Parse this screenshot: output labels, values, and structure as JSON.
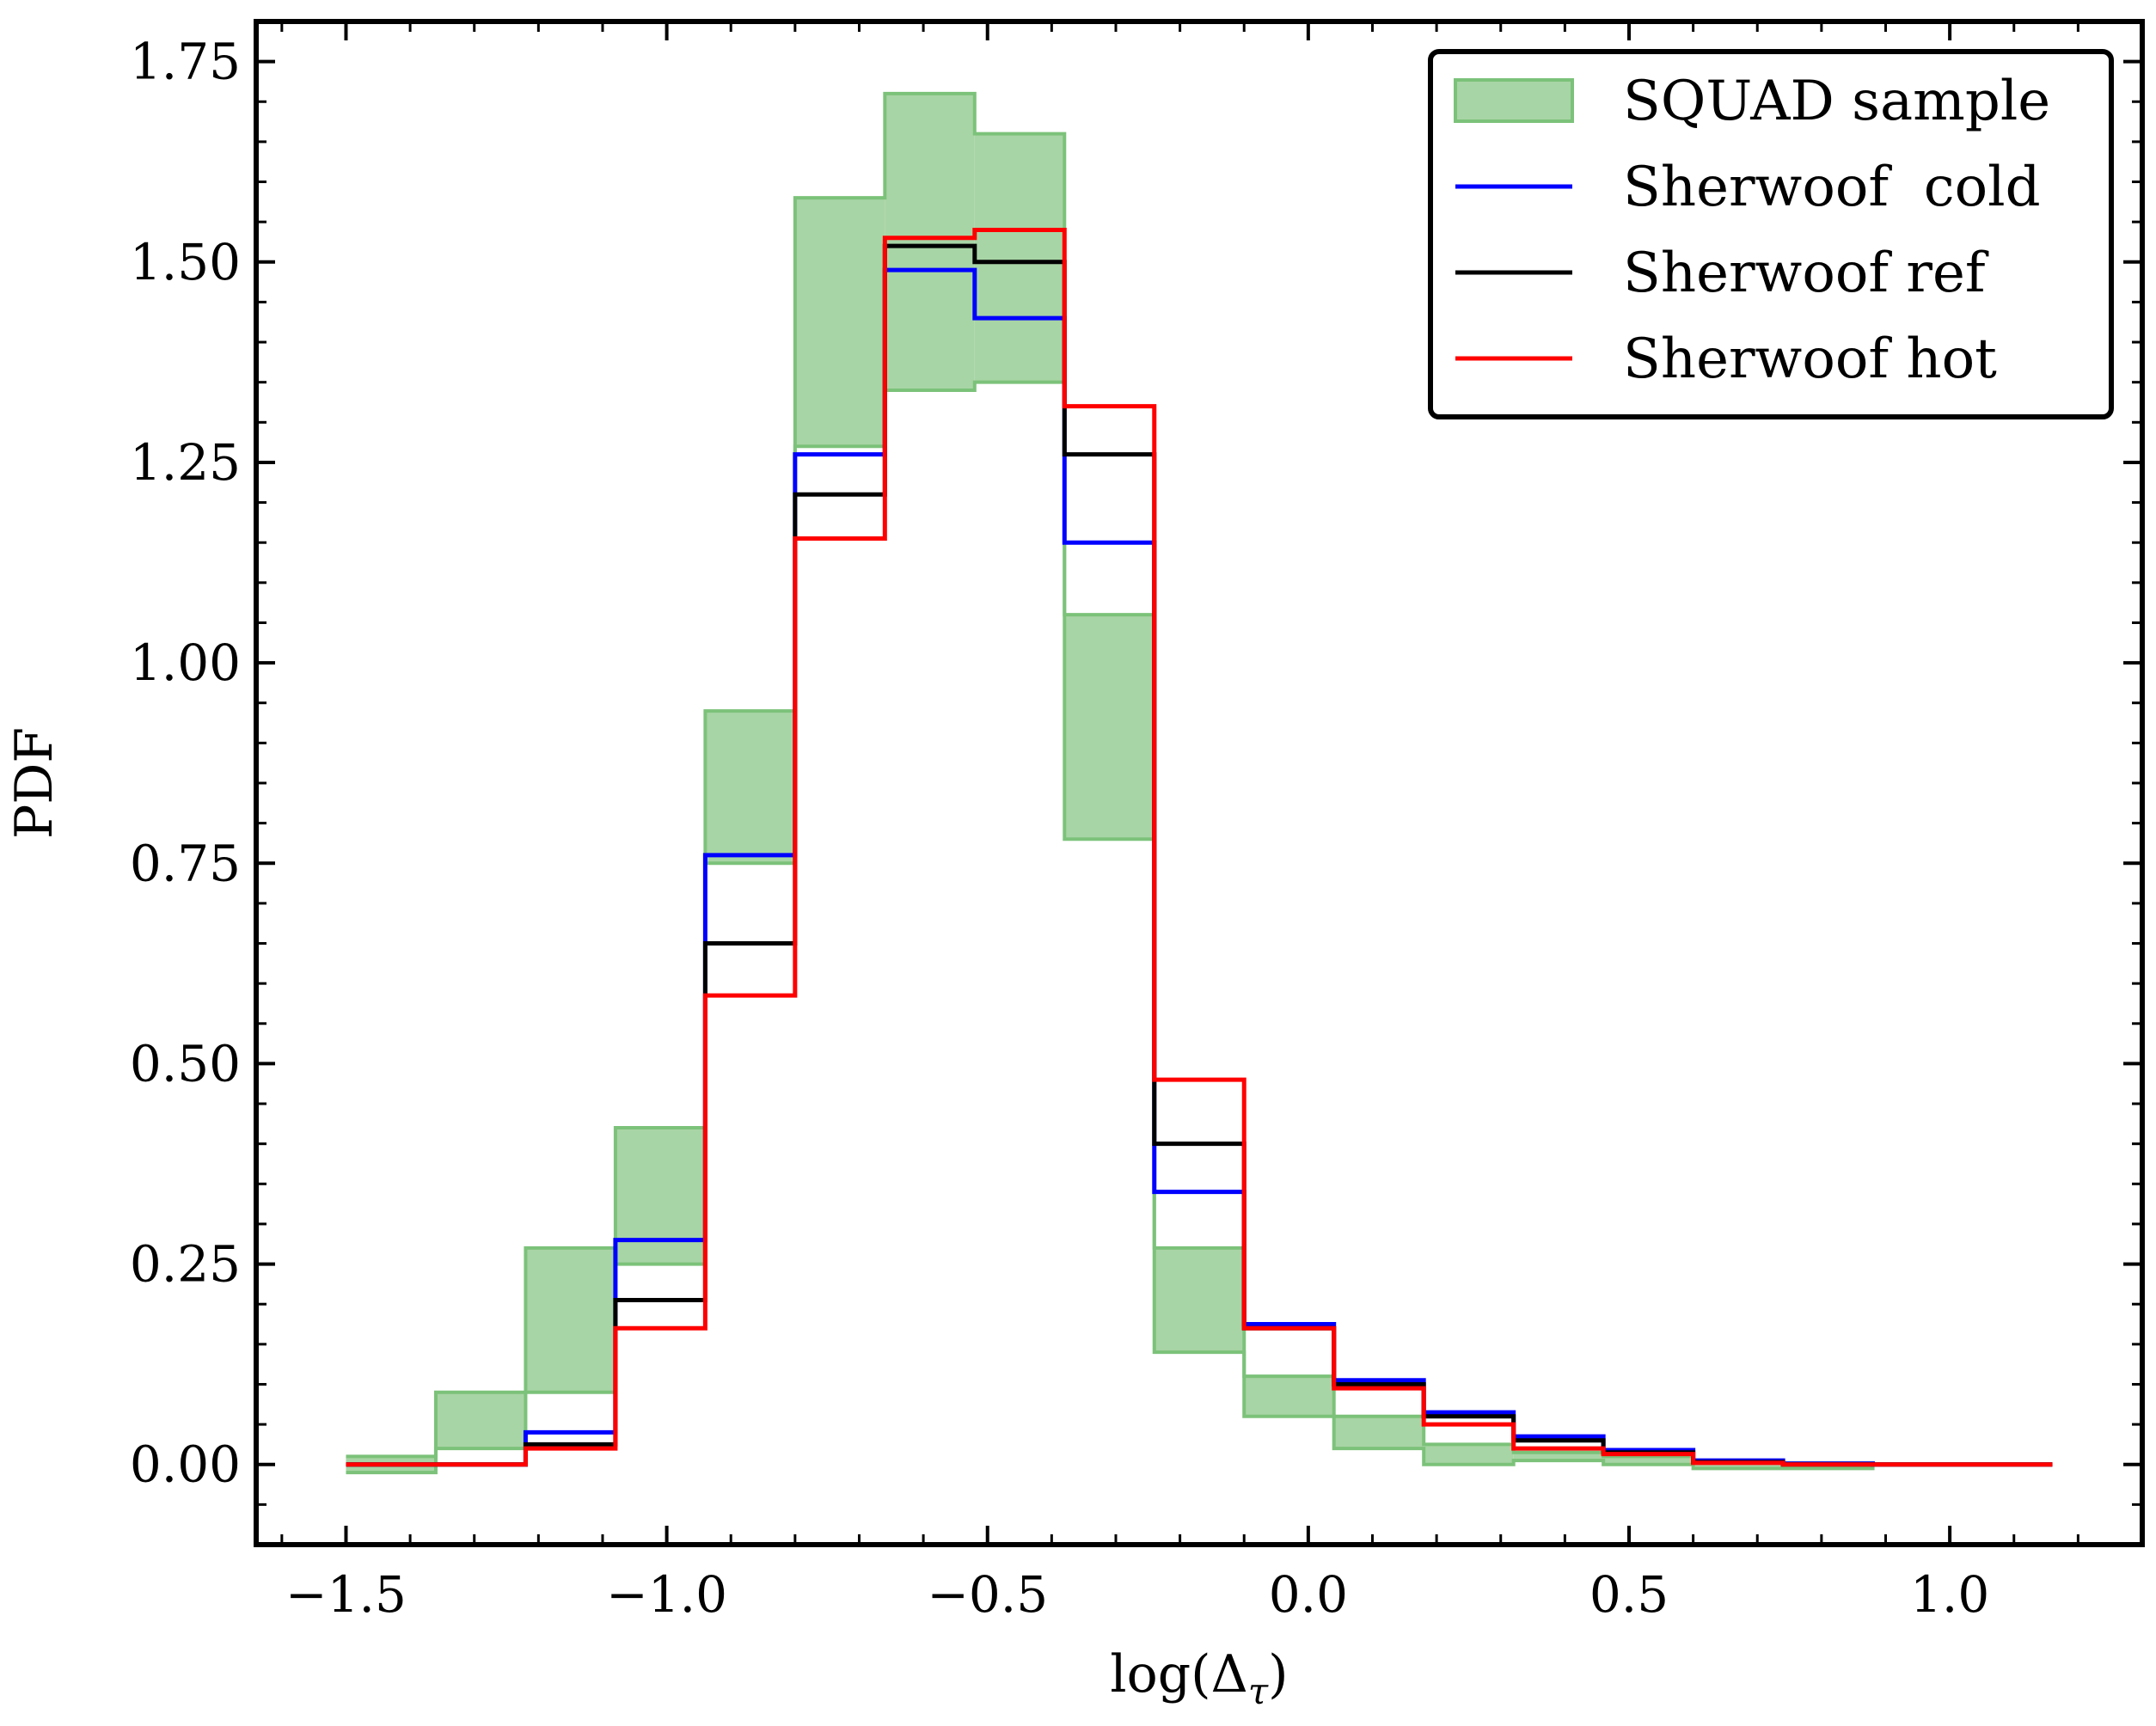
{
  "chart_data": {
    "type": "step",
    "xlabel": "log(Δ",
    "xlabel_sub": "τ",
    "ylabel": "PDF",
    "xlim": [
      -1.64,
      1.3
    ],
    "ylim": [
      -0.1,
      1.8
    ],
    "xticks": [
      -1.5,
      -1.0,
      -0.5,
      0.0,
      0.5,
      1.0
    ],
    "xtick_labels": [
      "−1.5",
      "−1.0",
      "−0.5",
      "0.0",
      "0.5",
      "1.0"
    ],
    "yticks": [
      0.0,
      0.25,
      0.5,
      0.75,
      1.0,
      1.25,
      1.5,
      1.75
    ],
    "ytick_labels": [
      "0.00",
      "0.25",
      "0.50",
      "0.75",
      "1.00",
      "1.25",
      "1.50",
      "1.75"
    ],
    "bin_edges": [
      -1.5,
      -1.36,
      -1.22,
      -1.08,
      -0.94,
      -0.8,
      -0.66,
      -0.52,
      -0.38,
      -0.24,
      -0.1,
      0.04,
      0.18,
      0.32,
      0.46,
      0.6,
      0.74,
      0.88,
      1.02,
      1.16
    ],
    "band": {
      "name": "SQUAD sample",
      "color": "#a8d5a5",
      "edge_color": "#7cc27a",
      "lower": [
        -0.01,
        0.02,
        0.09,
        0.25,
        0.75,
        1.27,
        1.34,
        1.35,
        0.78,
        0.14,
        0.06,
        0.02,
        0.0,
        0.005,
        0.0,
        -0.005,
        -0.005,
        0.0,
        0.0
      ],
      "upper": [
        0.01,
        0.09,
        0.27,
        0.42,
        0.94,
        1.58,
        1.71,
        1.66,
        1.06,
        0.27,
        0.11,
        0.06,
        0.025,
        0.015,
        0.01,
        0.005,
        0.002,
        0.0,
        0.0
      ]
    },
    "series": [
      {
        "name": "Sherwoof  cold",
        "color": "#0000ff",
        "values": [
          0.0,
          0.0,
          0.04,
          0.28,
          0.76,
          1.26,
          1.49,
          1.43,
          1.15,
          0.34,
          0.175,
          0.105,
          0.065,
          0.035,
          0.018,
          0.005,
          0.001,
          0.0,
          0.0
        ]
      },
      {
        "name": "Sherwoof ref",
        "color": "#000000",
        "values": [
          0.0,
          0.0,
          0.025,
          0.205,
          0.65,
          1.21,
          1.52,
          1.5,
          1.26,
          0.4,
          0.17,
          0.1,
          0.06,
          0.03,
          0.015,
          0.003,
          0.0,
          0.0,
          0.0
        ]
      },
      {
        "name": "Sherwoof hot",
        "color": "#ff0000",
        "values": [
          0.0,
          0.0,
          0.02,
          0.17,
          0.585,
          1.155,
          1.53,
          1.54,
          1.32,
          0.48,
          0.17,
          0.095,
          0.05,
          0.02,
          0.013,
          0.002,
          0.0,
          0.0,
          0.0
        ]
      }
    ],
    "legend_position": "top-right"
  }
}
